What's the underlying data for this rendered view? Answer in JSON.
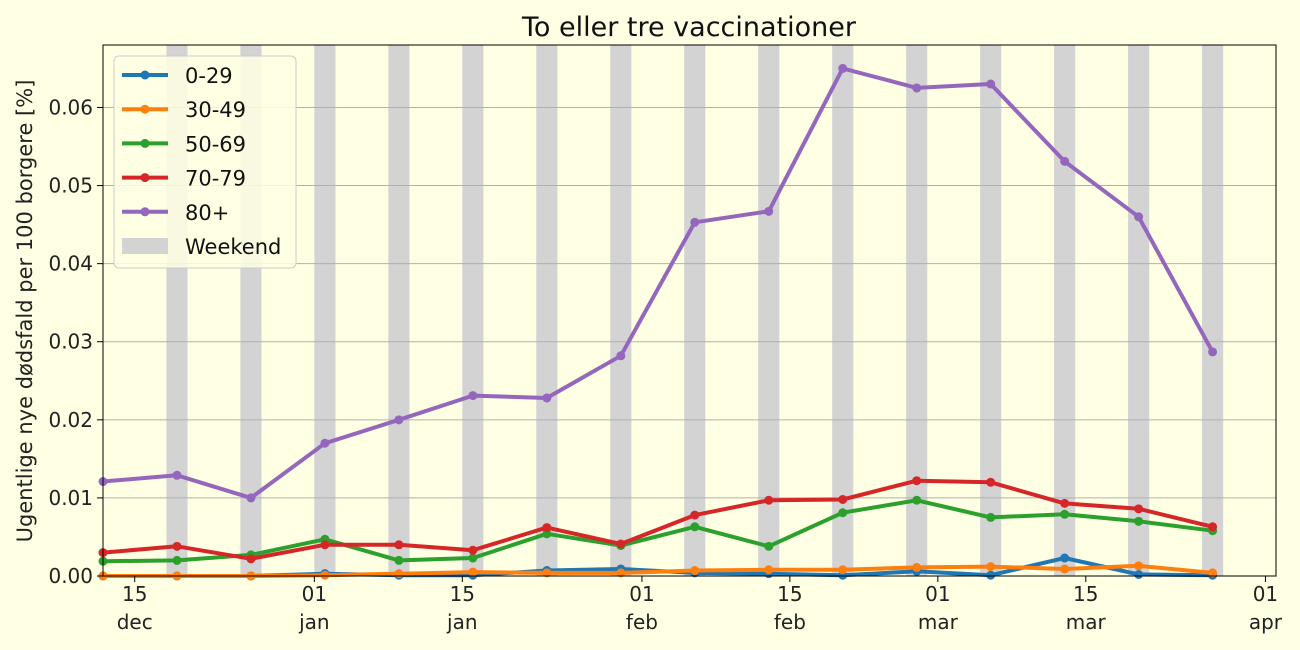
{
  "chart_data": {
    "type": "line",
    "title": "To eller tre vaccinationer",
    "ylabel": "Ugentlige nye dødsfald per 100 borgere [%]",
    "xlabel": "",
    "ylim": [
      0,
      0.068
    ],
    "xlim": [
      "2021-12-12",
      "2022-04-02"
    ],
    "grid": "horizontal",
    "legend_position": "top-left",
    "x": [
      "2021-12-12",
      "2021-12-19",
      "2021-12-26",
      "2022-01-02",
      "2022-01-09",
      "2022-01-16",
      "2022-01-23",
      "2022-01-30",
      "2022-02-06",
      "2022-02-13",
      "2022-02-20",
      "2022-02-27",
      "2022-03-06",
      "2022-03-13",
      "2022-03-20",
      "2022-03-27"
    ],
    "y_ticks": [
      {
        "value": 0,
        "label": "0.00"
      },
      {
        "value": 0.01,
        "label": "0.01"
      },
      {
        "value": 0.02,
        "label": "0.02"
      },
      {
        "value": 0.03,
        "label": "0.03"
      },
      {
        "value": 0.04,
        "label": "0.04"
      },
      {
        "value": 0.05,
        "label": "0.05"
      },
      {
        "value": 0.06,
        "label": "0.06"
      }
    ],
    "x_ticks": [
      {
        "date": "2021-12-15",
        "day": "15",
        "month": "dec"
      },
      {
        "date": "2022-01-01",
        "day": "01",
        "month": "jan"
      },
      {
        "date": "2022-01-15",
        "day": "15",
        "month": "jan"
      },
      {
        "date": "2022-02-01",
        "day": "01",
        "month": "feb"
      },
      {
        "date": "2022-02-15",
        "day": "15",
        "month": "feb"
      },
      {
        "date": "2022-03-01",
        "day": "01",
        "month": "mar"
      },
      {
        "date": "2022-03-15",
        "day": "15",
        "month": "mar"
      },
      {
        "date": "2022-04-01",
        "day": "01",
        "month": "apr"
      }
    ],
    "weekends": [
      "2021-12-18",
      "2021-12-25",
      "2022-01-01",
      "2022-01-08",
      "2022-01-15",
      "2022-01-22",
      "2022-01-29",
      "2022-02-05",
      "2022-02-12",
      "2022-02-19",
      "2022-02-26",
      "2022-03-05",
      "2022-03-12",
      "2022-03-19",
      "2022-03-26",
      "2022-04-02"
    ],
    "weekend_label": "Weekend",
    "weekend_color": "#d3d3d3",
    "series": [
      {
        "name": "0-29",
        "color": "#1f77b4",
        "values": [
          0.0,
          0.0,
          0.0,
          0.0003,
          0.0001,
          0.0001,
          0.0007,
          0.0009,
          0.0004,
          0.0003,
          0.0001,
          0.0006,
          0.0001,
          0.0023,
          0.0002,
          0.0001
        ]
      },
      {
        "name": "30-49",
        "color": "#ff7f0e",
        "values": [
          0.0,
          0.0,
          0.0,
          0.0001,
          0.0003,
          0.0005,
          0.0004,
          0.0004,
          0.0007,
          0.0008,
          0.0008,
          0.0011,
          0.0012,
          0.0009,
          0.0013,
          0.0004
        ]
      },
      {
        "name": "50-69",
        "color": "#2ca02c",
        "values": [
          0.0019,
          0.002,
          0.0027,
          0.0047,
          0.002,
          0.0023,
          0.0054,
          0.0039,
          0.0063,
          0.0038,
          0.0081,
          0.0097,
          0.0075,
          0.0079,
          0.007,
          0.0058
        ]
      },
      {
        "name": "70-79",
        "color": "#d62728",
        "values": [
          0.003,
          0.0038,
          0.0022,
          0.004,
          0.004,
          0.0033,
          0.0062,
          0.0041,
          0.0078,
          0.0097,
          0.0098,
          0.0122,
          0.012,
          0.0093,
          0.0086,
          0.0063
        ]
      },
      {
        "name": "80+",
        "color": "#9467bd",
        "values": [
          0.0121,
          0.0129,
          0.01,
          0.017,
          0.02,
          0.0231,
          0.0228,
          0.0282,
          0.0453,
          0.0467,
          0.065,
          0.0625,
          0.063,
          0.0531,
          0.046,
          0.0287
        ]
      }
    ]
  }
}
